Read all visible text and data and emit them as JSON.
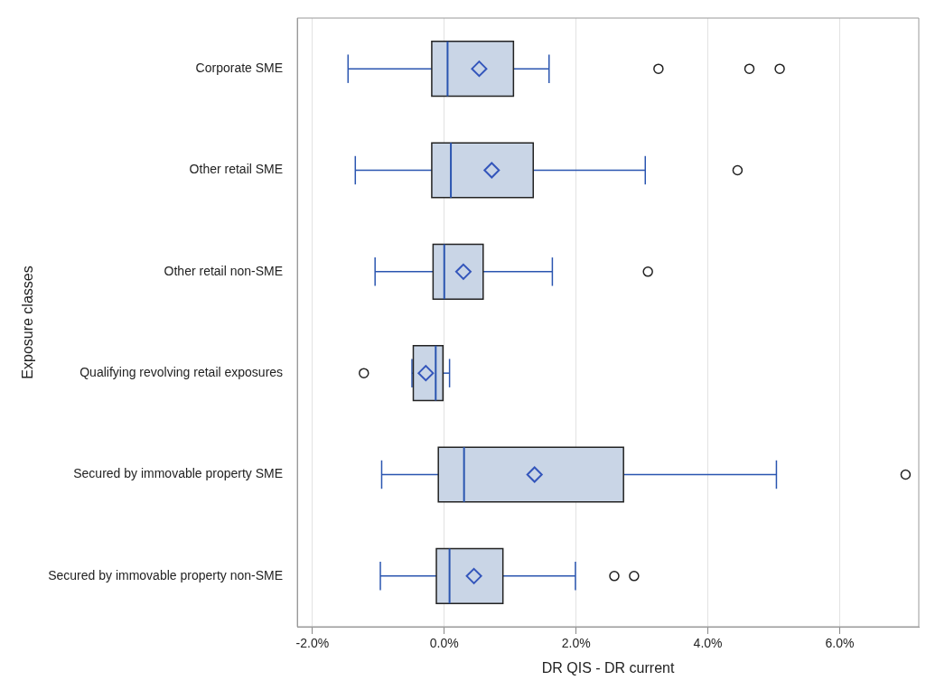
{
  "chart_data": {
    "type": "box",
    "orientation": "horizontal",
    "xlabel": "DR QIS - DR current",
    "ylabel": "Exposure classes",
    "categories": [
      "Corporate SME",
      "Other retail SME",
      "Other retail non-SME",
      "Qualifying revolving retail exposures",
      "Secured by immovable property SME",
      "Secured by immovable property non-SME"
    ],
    "boxes": [
      {
        "low": -1.46,
        "q1": -0.19,
        "median": 0.05,
        "q3": 1.05,
        "high": 1.59,
        "mean": 0.53,
        "outliers": [
          3.25,
          4.63,
          5.09
        ]
      },
      {
        "low": -1.35,
        "q1": -0.19,
        "median": 0.1,
        "q3": 1.35,
        "high": 3.05,
        "mean": 0.72,
        "outliers": [
          4.45
        ]
      },
      {
        "low": -1.05,
        "q1": -0.17,
        "median": 0.0,
        "q3": 0.59,
        "high": 1.64,
        "mean": 0.29,
        "outliers": [
          3.09
        ]
      },
      {
        "low": -0.49,
        "q1": -0.47,
        "median": -0.13,
        "q3": -0.02,
        "high": 0.08,
        "mean": -0.28,
        "outliers": [
          -1.22
        ]
      },
      {
        "low": -0.95,
        "q1": -0.09,
        "median": 0.3,
        "q3": 2.72,
        "high": 5.04,
        "mean": 1.37,
        "outliers": [
          7.0
        ]
      },
      {
        "low": -0.97,
        "q1": -0.12,
        "median": 0.08,
        "q3": 0.89,
        "high": 1.99,
        "mean": 0.45,
        "outliers": [
          2.58,
          2.88
        ]
      }
    ],
    "color": "#c9d5e6",
    "xlim": [
      -2.23,
      7.2
    ],
    "xticks": [
      {
        "value": -2,
        "label": "-2.0%"
      },
      {
        "value": 0,
        "label": "0.0%"
      },
      {
        "value": 2,
        "label": "2.0%"
      },
      {
        "value": 4,
        "label": "4.0%"
      },
      {
        "value": 6,
        "label": "6.0%"
      }
    ],
    "grid": "x",
    "legend": false
  }
}
